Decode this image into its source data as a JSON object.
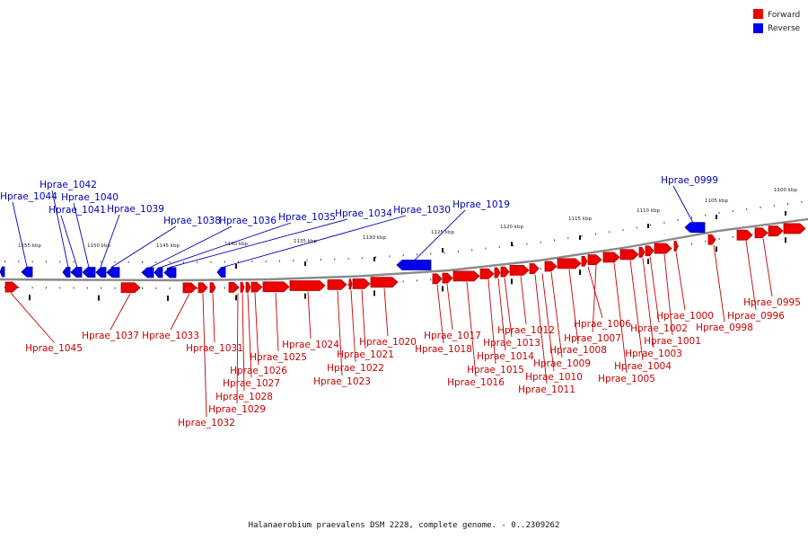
{
  "caption": "Halanaerobium praevalens DSM 2228, complete genome. - 0..2309262",
  "colors": {
    "forward": "#ee0000",
    "forward_dark": "#aa0000",
    "reverse": "#0000ee",
    "reverse_dark": "#000099",
    "forward_text": "#c80000",
    "reverse_text": "#0000b4"
  },
  "legend": {
    "forward": "Forward",
    "reverse": "Reverse"
  },
  "ticks": [
    "1100 kbp",
    "1105 kbp",
    "1110 kbp",
    "1115 kbp",
    "1120 kbp",
    "1125 kbp",
    "1130 kbp",
    "1135 kbp",
    "1140 kbp",
    "1145 kbp",
    "1150 kbp",
    "1155 kbp"
  ],
  "forward_genes": [
    "Hprae_0995",
    "Hprae_0996",
    "Hprae_0998",
    "Hprae_1000",
    "Hprae_1001",
    "Hprae_1002",
    "Hprae_1003",
    "Hprae_1004",
    "Hprae_1005",
    "Hprae_1006",
    "Hprae_1007",
    "Hprae_1008",
    "Hprae_1009",
    "Hprae_1010",
    "Hprae_1011",
    "Hprae_1012",
    "Hprae_1013",
    "Hprae_1014",
    "Hprae_1015",
    "Hprae_1016",
    "Hprae_1017",
    "Hprae_1018",
    "Hprae_1020",
    "Hprae_1021",
    "Hprae_1022",
    "Hprae_1023",
    "Hprae_1024",
    "Hprae_1025",
    "Hprae_1026",
    "Hprae_1027",
    "Hprae_1028",
    "Hprae_1029",
    "Hprae_1031",
    "Hprae_1032",
    "Hprae_1033",
    "Hprae_1037",
    "Hprae_1045"
  ],
  "reverse_genes": [
    "Hprae_0999",
    "Hprae_1019",
    "Hprae_1030",
    "Hprae_1034",
    "Hprae_1035",
    "Hprae_1036",
    "Hprae_1038",
    "Hprae_1039",
    "Hprae_1040",
    "Hprae_1041",
    "Hprae_1042",
    "Hprae_1044"
  ]
}
